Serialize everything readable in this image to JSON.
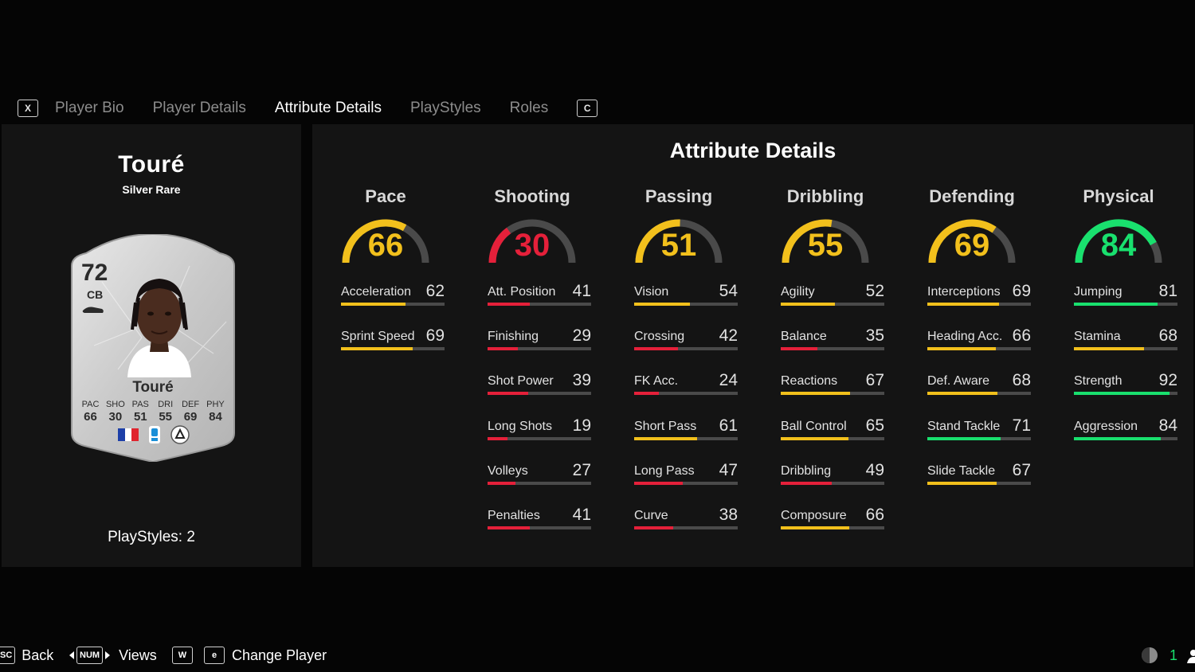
{
  "tabs": {
    "prev_key": "X",
    "next_key": "C",
    "items": [
      "Player Bio",
      "Player Details",
      "Attribute Details",
      "PlayStyles",
      "Roles"
    ],
    "active_index": 2
  },
  "player": {
    "name": "Touré",
    "rarity": "Silver Rare",
    "playstyles_text": "PlayStyles: 2",
    "card": {
      "rating": "72",
      "position": "CB",
      "name": "Touré",
      "stats": [
        {
          "label": "PAC",
          "value": "66"
        },
        {
          "label": "SHO",
          "value": "30"
        },
        {
          "label": "PAS",
          "value": "51"
        },
        {
          "label": "DRI",
          "value": "55"
        },
        {
          "label": "DEF",
          "value": "69"
        },
        {
          "label": "PHY",
          "value": "84"
        }
      ]
    }
  },
  "attributes": {
    "title": "Attribute Details",
    "colors": {
      "low": "#e5203a",
      "mid": "#f2c01c",
      "high": "#19e06e",
      "track": "#4a4a4a"
    },
    "categories": [
      {
        "name": "Pace",
        "value": 66,
        "items": [
          {
            "name": "Acceleration",
            "value": 62
          },
          {
            "name": "Sprint Speed",
            "value": 69
          }
        ]
      },
      {
        "name": "Shooting",
        "value": 30,
        "items": [
          {
            "name": "Att. Position",
            "value": 41
          },
          {
            "name": "Finishing",
            "value": 29
          },
          {
            "name": "Shot Power",
            "value": 39
          },
          {
            "name": "Long Shots",
            "value": 19
          },
          {
            "name": "Volleys",
            "value": 27
          },
          {
            "name": "Penalties",
            "value": 41
          }
        ]
      },
      {
        "name": "Passing",
        "value": 51,
        "items": [
          {
            "name": "Vision",
            "value": 54
          },
          {
            "name": "Crossing",
            "value": 42
          },
          {
            "name": "FK Acc.",
            "value": 24
          },
          {
            "name": "Short Pass",
            "value": 61
          },
          {
            "name": "Long Pass",
            "value": 47
          },
          {
            "name": "Curve",
            "value": 38
          }
        ]
      },
      {
        "name": "Dribbling",
        "value": 55,
        "items": [
          {
            "name": "Agility",
            "value": 52
          },
          {
            "name": "Balance",
            "value": 35
          },
          {
            "name": "Reactions",
            "value": 67
          },
          {
            "name": "Ball Control",
            "value": 65
          },
          {
            "name": "Dribbling",
            "value": 49
          },
          {
            "name": "Composure",
            "value": 66
          }
        ]
      },
      {
        "name": "Defending",
        "value": 69,
        "items": [
          {
            "name": "Interceptions",
            "value": 69
          },
          {
            "name": "Heading Acc.",
            "value": 66
          },
          {
            "name": "Def. Aware",
            "value": 68
          },
          {
            "name": "Stand Tackle",
            "value": 71
          },
          {
            "name": "Slide Tackle",
            "value": 67
          }
        ]
      },
      {
        "name": "Physical",
        "value": 84,
        "items": [
          {
            "name": "Jumping",
            "value": 81
          },
          {
            "name": "Stamina",
            "value": 68
          },
          {
            "name": "Strength",
            "value": 92
          },
          {
            "name": "Aggression",
            "value": 84
          }
        ]
      }
    ]
  },
  "footer": {
    "back_key": "SC",
    "back_label": "Back",
    "views_key": "NUM",
    "views_label": "Views",
    "w_key": "W",
    "change_key": "e",
    "change_label": "Change Player",
    "right_count": "1"
  }
}
